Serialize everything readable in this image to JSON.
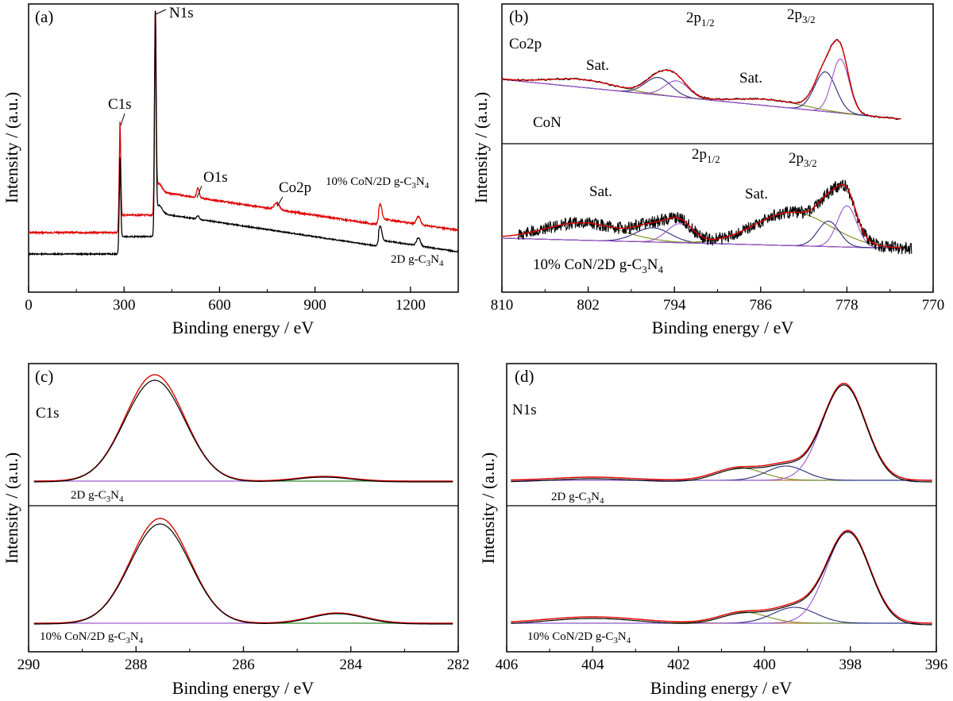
{
  "chart_data": [
    {
      "type": "line",
      "panel": "(a)",
      "xlabel": "Binding energy / eV",
      "ylabel": "Intensity / (a.u.)",
      "xlim": [
        0,
        1350
      ],
      "xticks": [
        0,
        300,
        600,
        900,
        1200
      ],
      "series": [
        {
          "name": "10% CoN/2D g-C3N4",
          "color": "#e00000"
        },
        {
          "name": "2D g-C3N4",
          "color": "#000000"
        }
      ],
      "annotations": [
        "N1s",
        "C1s",
        "O1s",
        "Co2p"
      ],
      "peaks_eV": {
        "C1s": 287,
        "N1s": 398,
        "O1s": 532,
        "Co2p": 780
      }
    },
    {
      "type": "line",
      "panel": "(b)",
      "label": "Co2p",
      "xlabel": "Binding energy / eV",
      "ylabel": "Intensity / (a.u.)",
      "xlim": [
        810,
        770
      ],
      "xticks": [
        810,
        802,
        794,
        786,
        778,
        770
      ],
      "subpanels": [
        "CoN",
        "10% CoN/2D g-C3N4"
      ],
      "annotations": [
        "Sat.",
        "2p1/2",
        "Sat.",
        "2p3/2"
      ],
      "peaks_eV": {
        "2p3/2_a": 778.3,
        "2p3/2_b": 779.7,
        "2p1/2_a": 793.5,
        "2p1/2_b": 795.2,
        "Sat_1": 802.3,
        "Sat_2": 785.0
      }
    },
    {
      "type": "line",
      "panel": "(c)",
      "label": "C1s",
      "xlabel": "Binding energy / eV",
      "ylabel": "Intensity / (a.u.)",
      "xlim": [
        290,
        282
      ],
      "xticks": [
        290,
        288,
        286,
        284,
        282
      ],
      "subpanels": [
        "2D g-C3N4",
        "10% CoN/2D g-C3N4"
      ],
      "peaks_eV": {
        "N-C=N": 287.6,
        "C-C": 284.6
      }
    },
    {
      "type": "line",
      "panel": "(d)",
      "label": "N1s",
      "xlabel": "Binding energy / eV",
      "ylabel": "Intensity / (a.u.)",
      "xlim": [
        406,
        396
      ],
      "xticks": [
        406,
        404,
        402,
        400,
        398,
        396
      ],
      "subpanels": [
        "2D g-C3N4",
        "10% CoN/2D g-C3N4"
      ],
      "peaks_eV": {
        "C-N=C": 398.1,
        "N-(C)3": 399.5,
        "C-N-H": 400.6,
        "pi": 404.0
      }
    }
  ],
  "text": {
    "a_tag": "(a)",
    "b_tag": "(b)",
    "c_tag": "(c)",
    "d_tag": "(d)",
    "xlabel": "Binding energy / eV",
    "ylabel": "Intensity / (a.u.)",
    "n1s": "N1s",
    "c1s": "C1s",
    "o1s": "O1s",
    "co2p": "Co2p",
    "sat": "Sat.",
    "p12_main": "2p",
    "p12_sub": "1/2",
    "p32_main": "2p",
    "p32_sub": "3/2",
    "con": "CoN",
    "composite_pre": "10% CoN/2D g-C",
    "composite_n": "N",
    "composite_3": "3",
    "composite_4": "4",
    "g_pre": "2D g-C",
    "g_n": "N",
    "g_3": "3",
    "g_4": "4",
    "a_xt": [
      "0",
      "300",
      "600",
      "900",
      "1200"
    ],
    "b_xt": [
      "810",
      "802",
      "794",
      "786",
      "778",
      "770"
    ],
    "c_xt": [
      "290",
      "288",
      "286",
      "284",
      "282"
    ],
    "d_xt": [
      "406",
      "404",
      "402",
      "400",
      "398",
      "396"
    ]
  },
  "colors": {
    "black": "#000000",
    "red": "#e00000",
    "purple": "#9a55c9",
    "navy": "#2a2a7a",
    "olive": "#7a8a18",
    "green": "#3aa035",
    "orange": "#d9822b",
    "violet": "#c07ad0",
    "blue": "#2f6fcf"
  }
}
